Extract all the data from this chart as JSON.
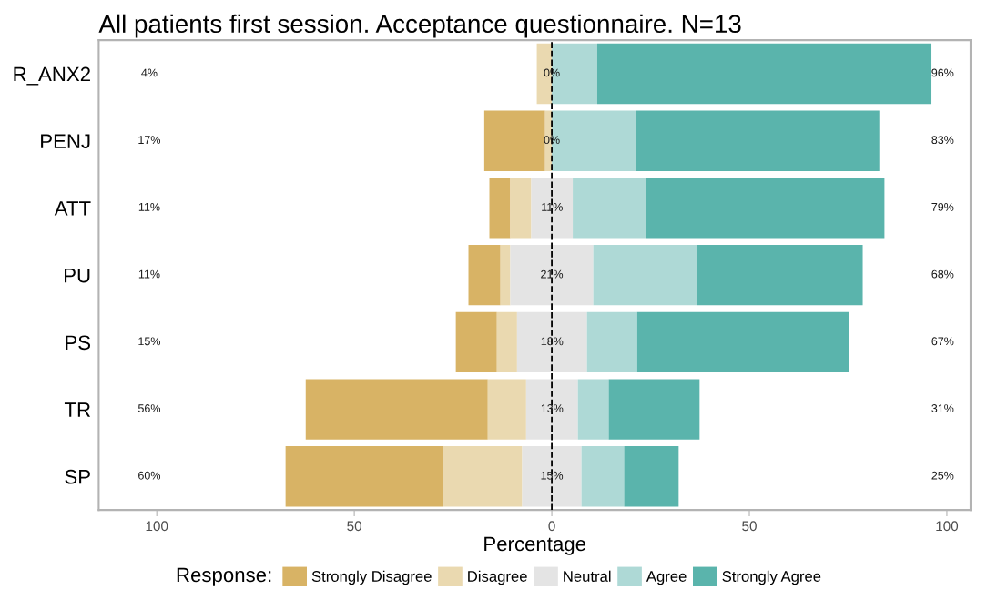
{
  "chart_data": {
    "type": "bar",
    "orientation": "horizontal",
    "title": "All patients first session. Acceptance questionnaire. N=13",
    "xlabel": "Percentage",
    "legend_title": "Response:",
    "legend": "bottom",
    "categories": [
      "R_ANX2",
      "PENJ",
      "ATT",
      "PU",
      "PS",
      "TR",
      "SP"
    ],
    "series": [
      {
        "name": "Strongly Disagree",
        "color": "#d8b365",
        "base": [
          null,
          -17.1,
          -15.8,
          -21.1,
          -24.3,
          -62.3,
          -67.4
        ],
        "values": [
          null,
          15.4,
          5.3,
          8.1,
          10.4,
          46.1,
          39.9
        ]
      },
      {
        "name": "Disagree",
        "color": "#ead9b0",
        "base": [
          -3.8,
          -1.7,
          -10.5,
          -13.0,
          -13.9,
          -16.2,
          -27.5
        ],
        "values": [
          3.8,
          1.7,
          5.3,
          2.5,
          5.1,
          9.7,
          20.0
        ]
      },
      {
        "name": "Neutral",
        "color": "#e4e4e4",
        "base": [
          null,
          null,
          -5.2,
          -10.5,
          -8.8,
          -6.5,
          -7.5
        ],
        "values": [
          0,
          0,
          10.5,
          21.0,
          17.7,
          13.1,
          15.0
        ],
        "value_labels": [
          "0%",
          "0%",
          "11%",
          "21%",
          "18%",
          "13%",
          "15%"
        ]
      },
      {
        "name": "Agree",
        "color": "#aed9d6",
        "base": [
          0,
          0,
          5.3,
          10.5,
          8.9,
          6.6,
          7.5
        ],
        "values": [
          11.5,
          21.2,
          18.5,
          26.3,
          12.7,
          7.8,
          10.8
        ]
      },
      {
        "name": "Strongly Agree",
        "color": "#5ab4ac",
        "base": [
          11.5,
          21.2,
          23.8,
          36.8,
          21.6,
          14.4,
          18.3
        ],
        "values": [
          84.6,
          61.7,
          60.4,
          41.9,
          53.7,
          23.0,
          13.8
        ]
      }
    ],
    "annotations": [
      "4%",
      "17%",
      "11%",
      "11%",
      "15%",
      "56%",
      "60%",
      "96%",
      "83%",
      "79%",
      "68%",
      "67%",
      "31%",
      "25%"
    ],
    "ref_lines": [
      {
        "axis": "x",
        "value": 0,
        "color": "#000000",
        "line_style": "dashed"
      }
    ],
    "xlim": [
      -114.7,
      106
    ],
    "xticks": [
      {
        "value": -100,
        "label": "100"
      },
      {
        "value": -50,
        "label": "50"
      },
      0,
      50,
      100
    ],
    "grid": false
  }
}
